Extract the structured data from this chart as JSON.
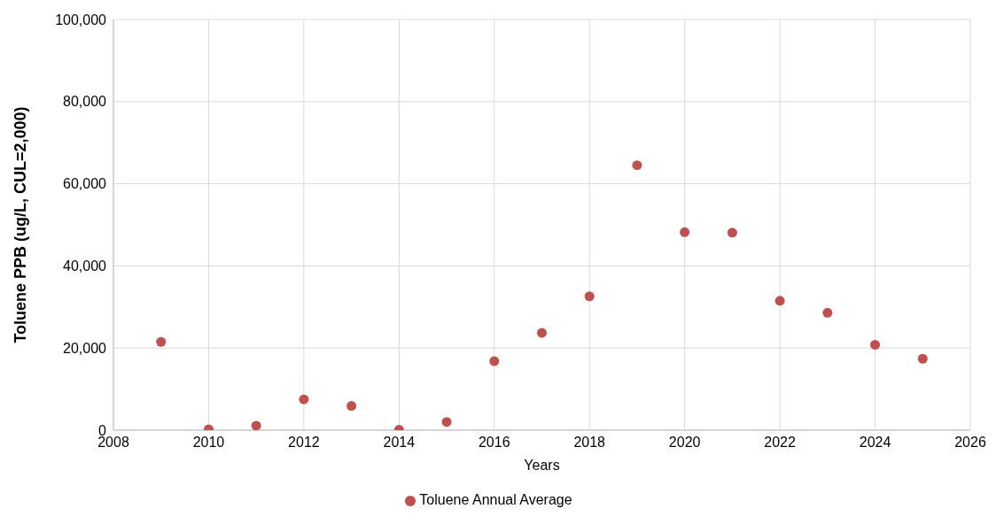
{
  "chart_data": {
    "type": "scatter",
    "xlabel": "Years",
    "ylabel": "Toluene PPB (ug/L, CUL=2,000)",
    "x": [
      2009,
      2010,
      2011,
      2012,
      2013,
      2014,
      2015,
      2016,
      2017,
      2018,
      2019,
      2020,
      2021,
      2022,
      2023,
      2024,
      2025
    ],
    "series": [
      {
        "name": "Toluene Annual Average",
        "color": "#c0504d",
        "values": [
          21500,
          200,
          1100,
          7500,
          5900,
          100,
          2000,
          16800,
          23700,
          32600,
          64500,
          48200,
          48100,
          31500,
          28600,
          20800,
          17400
        ]
      }
    ],
    "xlim": [
      2008,
      2026
    ],
    "xticks": [
      2008,
      2010,
      2012,
      2014,
      2016,
      2018,
      2020,
      2022,
      2024,
      2026
    ],
    "ylim": [
      0,
      100000
    ],
    "yticks": [
      0,
      {
        "value": 20000,
        "label": "20,000"
      },
      {
        "value": 40000,
        "label": "40,000"
      },
      {
        "value": 60000,
        "label": "60,000"
      },
      {
        "value": 80000,
        "label": "80,000"
      },
      {
        "value": 100000,
        "label": "100,000"
      }
    ],
    "grid": true,
    "legend": "bottom",
    "marker": "circle"
  }
}
